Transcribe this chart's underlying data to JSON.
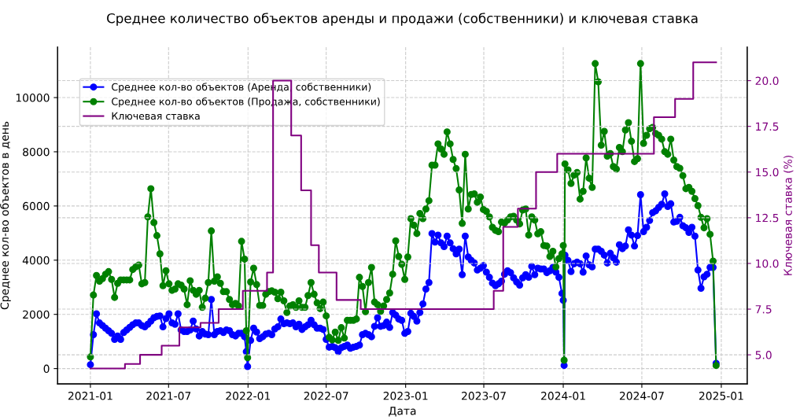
{
  "chart_data": {
    "type": "line",
    "title": "Среднее количество объектов аренды и продажи (собственники) и ключевая ставка",
    "xlabel": "Дата",
    "ylabel": "Среднее кол-во объектов в день",
    "y2label": "Ключевая ставка (%)",
    "x": [
      "2021-01-01",
      "2021-01-08",
      "2021-01-15",
      "2021-01-22",
      "2021-01-29",
      "2021-02-05",
      "2021-02-12",
      "2021-02-19",
      "2021-02-26",
      "2021-03-05",
      "2021-03-12",
      "2021-03-19",
      "2021-03-26",
      "2021-04-02",
      "2021-04-09",
      "2021-04-16",
      "2021-04-23",
      "2021-04-30",
      "2021-05-07",
      "2021-05-14",
      "2021-05-21",
      "2021-05-28",
      "2021-06-04",
      "2021-06-11",
      "2021-06-18",
      "2021-06-25",
      "2021-07-02",
      "2021-07-09",
      "2021-07-16",
      "2021-07-23",
      "2021-07-30",
      "2021-08-06",
      "2021-08-13",
      "2021-08-20",
      "2021-08-27",
      "2021-09-03",
      "2021-09-10",
      "2021-09-17",
      "2021-09-24",
      "2021-10-01",
      "2021-10-08",
      "2021-10-15",
      "2021-10-22",
      "2021-10-29",
      "2021-11-05",
      "2021-11-12",
      "2021-11-19",
      "2021-11-26",
      "2021-12-03",
      "2021-12-10",
      "2021-12-17",
      "2021-12-24",
      "2021-12-28",
      "2021-12-31",
      "2022-01-07",
      "2022-01-14",
      "2022-01-21",
      "2022-01-28",
      "2022-02-04",
      "2022-02-11",
      "2022-02-18",
      "2022-02-25",
      "2022-03-04",
      "2022-03-11",
      "2022-03-18",
      "2022-03-25",
      "2022-04-01",
      "2022-04-08",
      "2022-04-15",
      "2022-04-22",
      "2022-04-29",
      "2022-05-06",
      "2022-05-13",
      "2022-05-20",
      "2022-05-27",
      "2022-06-03",
      "2022-06-10",
      "2022-06-17",
      "2022-06-24",
      "2022-07-01",
      "2022-07-08",
      "2022-07-15",
      "2022-07-22",
      "2022-07-29",
      "2022-08-05",
      "2022-08-12",
      "2022-08-19",
      "2022-08-26",
      "2022-09-02",
      "2022-09-09",
      "2022-09-16",
      "2022-09-23",
      "2022-09-30",
      "2022-10-07",
      "2022-10-14",
      "2022-10-21",
      "2022-10-28",
      "2022-11-04",
      "2022-11-11",
      "2022-11-18",
      "2022-11-25",
      "2022-12-02",
      "2022-12-09",
      "2022-12-16",
      "2022-12-23",
      "2022-12-30",
      "2023-01-06",
      "2023-01-13",
      "2023-01-20",
      "2023-01-27",
      "2023-02-03",
      "2023-02-10",
      "2023-02-17",
      "2023-02-24",
      "2023-03-03",
      "2023-03-10",
      "2023-03-17",
      "2023-03-24",
      "2023-03-31",
      "2023-04-07",
      "2023-04-14",
      "2023-04-21",
      "2023-04-28",
      "2023-05-05",
      "2023-05-12",
      "2023-05-19",
      "2023-05-26",
      "2023-06-02",
      "2023-06-09",
      "2023-06-16",
      "2023-06-23",
      "2023-06-30",
      "2023-07-07",
      "2023-07-14",
      "2023-07-21",
      "2023-07-28",
      "2023-08-04",
      "2023-08-11",
      "2023-08-18",
      "2023-08-25",
      "2023-09-01",
      "2023-09-08",
      "2023-09-15",
      "2023-09-22",
      "2023-09-29",
      "2023-10-06",
      "2023-10-13",
      "2023-10-20",
      "2023-10-27",
      "2023-11-03",
      "2023-11-10",
      "2023-11-17",
      "2023-11-24",
      "2023-12-01",
      "2023-12-08",
      "2023-12-15",
      "2023-12-22",
      "2023-12-29",
      "2024-01-01",
      "2024-01-03",
      "2024-01-05",
      "2024-01-12",
      "2024-01-19",
      "2024-01-26",
      "2024-02-02",
      "2024-02-09",
      "2024-02-16",
      "2024-02-23",
      "2024-03-01",
      "2024-03-08",
      "2024-03-15",
      "2024-03-22",
      "2024-03-29",
      "2024-04-05",
      "2024-04-12",
      "2024-04-19",
      "2024-04-26",
      "2024-05-03",
      "2024-05-10",
      "2024-05-17",
      "2024-05-24",
      "2024-05-31",
      "2024-06-07",
      "2024-06-14",
      "2024-06-21",
      "2024-06-28",
      "2024-07-05",
      "2024-07-12",
      "2024-07-19",
      "2024-07-26",
      "2024-08-02",
      "2024-08-09",
      "2024-08-16",
      "2024-08-23",
      "2024-08-30",
      "2024-09-06",
      "2024-09-13",
      "2024-09-20",
      "2024-09-27",
      "2024-10-04",
      "2024-10-11",
      "2024-10-18",
      "2024-10-25",
      "2024-11-01",
      "2024-11-08",
      "2024-11-15",
      "2024-11-22",
      "2024-11-29",
      "2024-12-06",
      "2024-12-13",
      "2024-12-20"
    ],
    "series": [
      {
        "name": "Среднее кол-во объектов (Аренда, собственники)",
        "color": "#0000ff",
        "values": [
          144,
          1251,
          2020,
          1684,
          1587,
          1491,
          1395,
          1299,
          1077,
          1203,
          1077,
          1328,
          1424,
          1520,
          1616,
          1684,
          1684,
          1587,
          1539,
          1635,
          1751,
          1876,
          1924,
          1943,
          1539,
          1847,
          2020,
          1684,
          1635,
          2020,
          1424,
          1366,
          1366,
          1424,
          1751,
          1462,
          1203,
          1366,
          1270,
          1251,
          2549,
          1251,
          1366,
          1395,
          1328,
          1424,
          1395,
          1251,
          1203,
          1299,
          1299,
          1174,
          625,
          77,
          1039,
          1491,
          1347,
          1106,
          1174,
          1270,
          1299,
          1251,
          1462,
          1539,
          1828,
          1655,
          1684,
          1655,
          1684,
          1539,
          1635,
          1443,
          1539,
          1616,
          1780,
          1616,
          1491,
          1491,
          1443,
          1077,
          789,
          818,
          770,
          625,
          770,
          818,
          866,
          750,
          789,
          818,
          866,
          1251,
          1299,
          1251,
          1174,
          1559,
          1876,
          1559,
          1587,
          1712,
          1520,
          2068,
          1972,
          1828,
          1780,
          1299,
          1366,
          2039,
          1924,
          1751,
          2068,
          2386,
          2934,
          3175,
          4983,
          4666,
          4925,
          4637,
          4502,
          4887,
          4637,
          4425,
          4233,
          4406,
          3463,
          4887,
          4117,
          3992,
          3896,
          3636,
          3704,
          3800,
          3559,
          3367,
          3155,
          3059,
          3127,
          3223,
          3482,
          3608,
          3540,
          3348,
          3194,
          3078,
          3348,
          3463,
          3367,
          3771,
          3463,
          3704,
          3675,
          3675,
          3540,
          3608,
          3733,
          3559,
          3367,
          2771,
          2520,
          115,
          4185,
          3992,
          3579,
          3867,
          3925,
          3867,
          3559,
          4156,
          3829,
          3752,
          4406,
          4406,
          4329,
          4185,
          3896,
          4252,
          4089,
          3925,
          4570,
          4425,
          4521,
          5118,
          4925,
          4521,
          4906,
          6417,
          5051,
          5214,
          5464,
          5753,
          5820,
          5945,
          6061,
          6445,
          5984,
          6080,
          5406,
          5435,
          5580,
          5272,
          5195,
          5022,
          5214,
          4887,
          3636,
          2963,
          3386,
          3482,
          3733,
          3733,
          192
        ]
      },
      {
        "name": "Среднее кол-во объектов (Продажа, собственники)",
        "color": "#008000",
        "values": [
          433,
          2713,
          3434,
          3223,
          3319,
          3482,
          3578,
          3290,
          2626,
          3146,
          3271,
          3271,
          3271,
          3271,
          3656,
          3752,
          3819,
          3127,
          3175,
          5599,
          6638,
          5387,
          4906,
          4233,
          3059,
          3608,
          3127,
          2886,
          2934,
          3127,
          3078,
          2934,
          2357,
          3242,
          2886,
          2742,
          2886,
          2261,
          2597,
          3175,
          5079,
          3223,
          3386,
          3146,
          2838,
          2838,
          2549,
          2357,
          2405,
          2309,
          4695,
          4040,
          1395,
          404,
          3194,
          3704,
          3098,
          2328,
          2328,
          2742,
          2838,
          2867,
          2819,
          2578,
          2819,
          2501,
          2068,
          2309,
          2357,
          2261,
          2501,
          2261,
          2261,
          2694,
          3175,
          2742,
          2424,
          2213,
          2453,
          1943,
          1154,
          1058,
          1347,
          1039,
          1510,
          1125,
          1780,
          1780,
          1780,
          1828,
          3367,
          3030,
          2097,
          3175,
          3733,
          2453,
          2357,
          2116,
          2309,
          2549,
          2790,
          3482,
          4714,
          4136,
          3848,
          3290,
          4117,
          5531,
          5291,
          4983,
          5724,
          5531,
          5887,
          6195,
          7504,
          7504,
          8292,
          8100,
          7908,
          8735,
          8292,
          7715,
          7379,
          6590,
          5358,
          7908,
          5887,
          6426,
          6445,
          6137,
          6330,
          5868,
          5801,
          5599,
          5214,
          5099,
          5051,
          5406,
          5368,
          5483,
          5599,
          5618,
          5483,
          5339,
          5849,
          5887,
          4925,
          5599,
          5483,
          4973,
          5051,
          4541,
          4521,
          4136,
          4329,
          3752,
          4059,
          4233,
          4541,
          308,
          7552,
          7331,
          6830,
          7138,
          7234,
          6253,
          6542,
          7773,
          7023,
          6686,
          11255,
          10582,
          8244,
          8754,
          7840,
          7937,
          7456,
          7359,
          8158,
          8004,
          8803,
          9072,
          8389,
          7639,
          7744,
          11255,
          8312,
          8610,
          8851,
          8899,
          8677,
          8610,
          8466,
          8004,
          7908,
          8466,
          7696,
          7456,
          7388,
          7119,
          6638,
          6686,
          6542,
          6272,
          6013,
          5580,
          5195,
          5531,
          4954,
          3963,
          115
        ]
      },
      {
        "name": "Ключевая ставка",
        "color": "#800080",
        "type": "step",
        "axis": "y2",
        "marker": "none",
        "x": [
          "2021-01-01",
          "2021-03-22",
          "2021-04-26",
          "2021-06-15",
          "2021-07-26",
          "2021-09-13",
          "2021-10-25",
          "2021-12-20",
          "2022-02-14",
          "2022-02-28",
          "2022-04-11",
          "2022-05-04",
          "2022-05-27",
          "2022-06-14",
          "2022-07-25",
          "2022-09-19",
          "2023-07-24",
          "2023-08-15",
          "2023-09-18",
          "2023-10-30",
          "2023-12-18",
          "2024-07-29",
          "2024-09-16",
          "2024-10-28",
          "2024-12-20"
        ],
        "values": [
          4.25,
          4.5,
          5.0,
          5.5,
          6.5,
          6.75,
          7.5,
          8.5,
          9.5,
          20,
          17,
          14,
          11,
          9.5,
          8,
          7.5,
          8.5,
          12,
          13,
          15,
          16,
          18,
          19,
          21,
          21
        ]
      }
    ],
    "marker": "circle",
    "line_style": "solid",
    "grid": true,
    "legend": "top left",
    "xlim": [
      "2020-10-17",
      "2025-03-02"
    ],
    "xticks": [
      {
        "value": "2021-01-01",
        "label": "2021-01"
      },
      {
        "value": "2021-07-01",
        "label": "2021-07"
      },
      {
        "value": "2022-01-01",
        "label": "2022-01"
      },
      {
        "value": "2022-07-01",
        "label": "2022-07"
      },
      {
        "value": "2023-01-01",
        "label": "2023-01"
      },
      {
        "value": "2023-07-01",
        "label": "2023-07"
      },
      {
        "value": "2024-01-01",
        "label": "2024-01"
      },
      {
        "value": "2024-07-01",
        "label": "2024-07"
      },
      {
        "value": "2025-01-01",
        "label": "2025-01"
      }
    ],
    "ylim": [
      -565,
      11865
    ],
    "yticks": [
      0,
      2000,
      4000,
      6000,
      8000,
      10000
    ],
    "y2lim": [
      3.41,
      21.84
    ],
    "y2ticks": [
      {
        "value": 5,
        "label": "5.0"
      },
      {
        "value": 7.5,
        "label": "7.5"
      },
      {
        "value": 10,
        "label": "10.0"
      },
      {
        "value": 12.5,
        "label": "12.5"
      },
      {
        "value": 15,
        "label": "15.0"
      },
      {
        "value": 17.5,
        "label": "17.5"
      },
      {
        "value": 20,
        "label": "20.0"
      }
    ]
  }
}
